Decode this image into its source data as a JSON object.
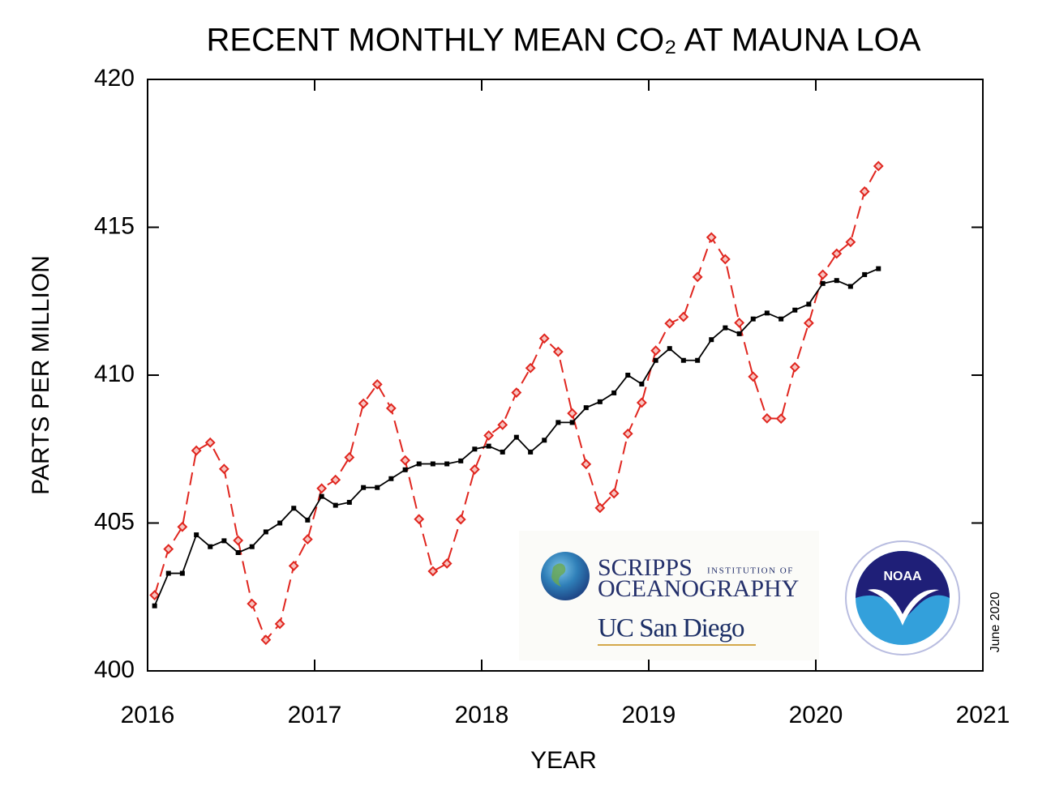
{
  "chart_data": {
    "type": "line",
    "title": "RECENT MONTHLY MEAN CO₂ AT MAUNA LOA",
    "x_label": "YEAR",
    "y_label": "PARTS PER MILLION",
    "x": [
      2016.042,
      2016.125,
      2016.208,
      2016.292,
      2016.375,
      2016.458,
      2016.542,
      2016.625,
      2016.708,
      2016.792,
      2016.875,
      2016.958,
      2017.042,
      2017.125,
      2017.208,
      2017.292,
      2017.375,
      2017.458,
      2017.542,
      2017.625,
      2017.708,
      2017.792,
      2017.875,
      2017.958,
      2018.042,
      2018.125,
      2018.208,
      2018.292,
      2018.375,
      2018.458,
      2018.542,
      2018.625,
      2018.708,
      2018.792,
      2018.875,
      2018.958,
      2019.042,
      2019.125,
      2019.208,
      2019.292,
      2019.375,
      2019.458,
      2019.542,
      2019.625,
      2019.708,
      2019.792,
      2019.875,
      2019.958,
      2020.042,
      2020.125,
      2020.208,
      2020.292,
      2020.375
    ],
    "series": [
      {
        "color": "#e0261f",
        "style": "dashed",
        "marker": "diamond",
        "values": [
          402.56,
          404.12,
          404.87,
          407.45,
          407.72,
          406.83,
          404.41,
          402.27,
          401.05,
          401.59,
          403.55,
          404.45,
          406.17,
          406.46,
          407.22,
          409.04,
          409.69,
          408.88,
          407.12,
          405.13,
          403.37,
          403.63,
          405.12,
          406.81,
          407.96,
          408.32,
          409.41,
          410.24,
          411.24,
          410.79,
          408.71,
          406.99,
          405.51,
          406.0,
          408.02,
          409.07,
          410.83,
          411.75,
          411.97,
          413.32,
          414.66,
          413.92,
          411.77,
          409.95,
          408.54,
          408.53,
          410.27,
          411.76,
          413.4,
          414.11,
          414.5,
          416.21,
          417.07
        ]
      },
      {
        "color": "#000000",
        "style": "solid",
        "marker": "square",
        "values": [
          402.2,
          403.3,
          403.3,
          404.6,
          404.2,
          404.4,
          404.0,
          404.2,
          404.7,
          405.0,
          405.5,
          405.1,
          405.9,
          405.6,
          405.7,
          406.2,
          406.2,
          406.5,
          406.8,
          407.0,
          407.0,
          407.0,
          407.1,
          407.5,
          407.6,
          407.4,
          407.9,
          407.4,
          407.8,
          408.4,
          408.4,
          408.9,
          409.1,
          409.4,
          410.0,
          409.7,
          410.5,
          410.9,
          410.5,
          410.5,
          411.2,
          411.6,
          411.4,
          411.9,
          412.1,
          411.9,
          412.2,
          412.4,
          413.1,
          413.2,
          413.0,
          413.4,
          413.6
        ]
      }
    ],
    "xlim": [
      2016,
      2021
    ],
    "xticks": [
      2016,
      2017,
      2018,
      2019,
      2020,
      2021
    ],
    "ylim": [
      400,
      420
    ],
    "yticks": [
      400,
      405,
      410,
      415,
      420
    ],
    "annotations": [
      "SCRIPPS",
      "INSTITUTION OF",
      "OCEANOGRAPHY",
      "UC San Diego",
      "NOAA",
      "June 2020"
    ]
  }
}
